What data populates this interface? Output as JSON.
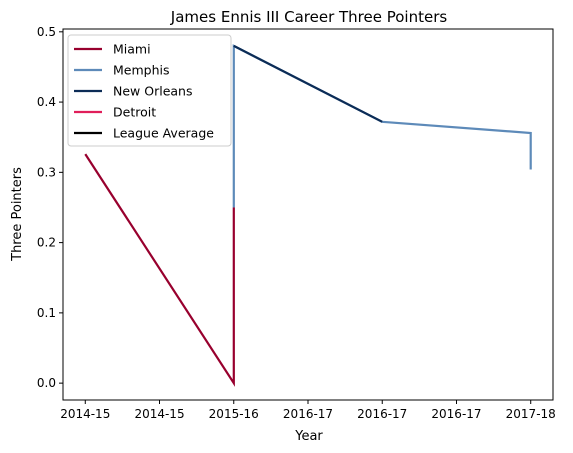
{
  "chart_data": {
    "type": "line",
    "title": "James Ennis III Career Three Pointers",
    "xlabel": "Year",
    "ylabel": "Three Pointers",
    "x_ticks": [
      "2014-15",
      "2014-15",
      "2015-16",
      "2016-17",
      "2016-17",
      "2016-17",
      "2017-18"
    ],
    "x_tick_positions": [
      0,
      0.5,
      1,
      1.5,
      2,
      2.5,
      3
    ],
    "xlim": [
      -0.15,
      3.15
    ],
    "ylim": [
      -0.024,
      0.504
    ],
    "y_ticks": [
      0.0,
      0.1,
      0.2,
      0.3,
      0.4,
      0.5
    ],
    "y_tick_labels": [
      "0.0",
      "0.1",
      "0.2",
      "0.3",
      "0.4",
      "0.5"
    ],
    "grid": false,
    "legend_placement": "top-left",
    "series": [
      {
        "name": "Miami",
        "color": "#98002e",
        "x": [
          0,
          1,
          1
        ],
        "y": [
          0.326,
          0.0,
          0.25
        ]
      },
      {
        "name": "Memphis",
        "color": "#5d8ab9",
        "x": [
          1,
          1,
          2,
          3,
          3
        ],
        "y": [
          0.25,
          0.48,
          0.372,
          0.356,
          0.304
        ]
      },
      {
        "name": "New Orleans",
        "color": "#0c2c56",
        "x": [
          1,
          2
        ],
        "y": [
          0.48,
          0.372
        ]
      },
      {
        "name": "Detroit",
        "color": "#e01e5a",
        "x": [],
        "y": []
      },
      {
        "name": "League Average",
        "color": "#000000",
        "x": [],
        "y": []
      }
    ]
  }
}
